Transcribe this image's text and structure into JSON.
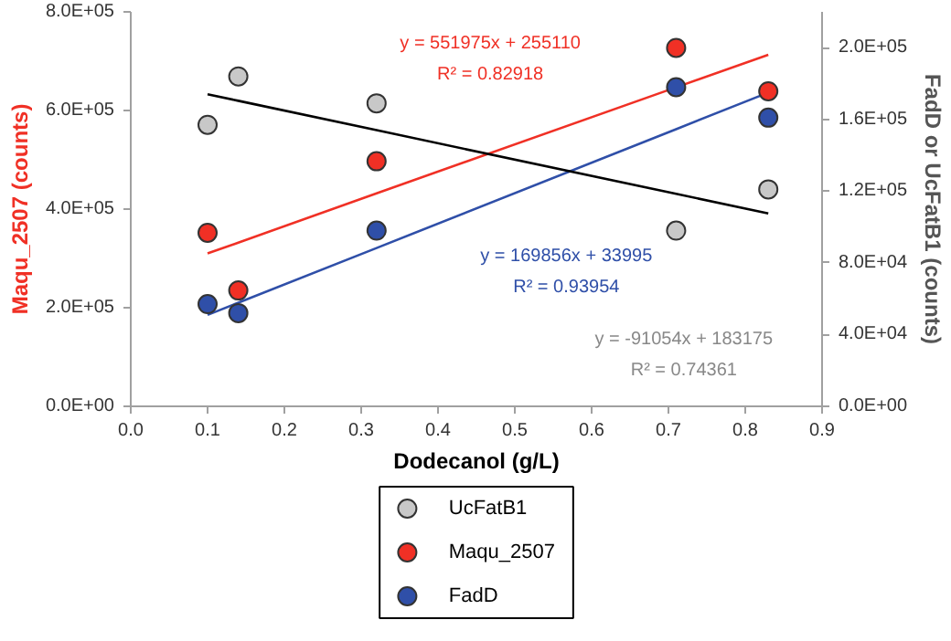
{
  "chart_data": {
    "type": "scatter",
    "xlabel": "Dodecanol (g/L)",
    "ylabel": "Maqu_2507 (counts)",
    "y2label": "FadD or UcFatB1 (counts)",
    "x": [
      0.1,
      0.14,
      0.32,
      0.71,
      0.83
    ],
    "series": [
      {
        "name": "UcFatB1",
        "color": "#c8c8c8",
        "axis": "y2",
        "values": [
          157000,
          184000,
          169000,
          98000,
          121000
        ]
      },
      {
        "name": "Maqu_2507",
        "color": "#f03025",
        "values": [
          352000,
          235000,
          497000,
          727000,
          639000
        ]
      },
      {
        "name": "FadD",
        "color": "#2f4fa8",
        "axis": "y2",
        "values": [
          57000,
          52000,
          98000,
          178000,
          161000
        ]
      },
      {
        "type": "line",
        "color": "#f03025",
        "values": [
          310000,
          332000,
          432000,
          647000,
          713000
        ],
        "marker": "none"
      },
      {
        "type": "line",
        "color": "#2f4fa8",
        "axis": "y2",
        "values": [
          51000,
          57800,
          88300,
          154600,
          175000
        ],
        "marker": "none"
      },
      {
        "type": "line",
        "color": "#000000",
        "axis": "y2",
        "values": [
          174000,
          170400,
          154000,
          118500,
          107600
        ],
        "marker": "none"
      }
    ],
    "annotations": [
      "y = 551975x + 255110",
      "R² = 0.82918",
      "y = 169856x + 33995",
      "R² = 0.93954",
      "y = -91054x + 183175",
      "R² = 0.74361"
    ],
    "xlim": [
      0,
      0.9
    ],
    "xticks": [
      {
        "value": 0,
        "label": "0.0"
      },
      {
        "value": 0.1,
        "label": "0.1"
      },
      {
        "value": 0.2,
        "label": "0.2"
      },
      {
        "value": 0.3,
        "label": "0.3"
      },
      {
        "value": 0.4,
        "label": "0.4"
      },
      {
        "value": 0.5,
        "label": "0.5"
      },
      {
        "value": 0.6,
        "label": "0.6"
      },
      {
        "value": 0.7,
        "label": "0.7"
      },
      {
        "value": 0.8,
        "label": "0.8"
      },
      {
        "value": 0.9,
        "label": "0.9"
      }
    ],
    "ylim": [
      0,
      800000
    ],
    "yticks": [
      {
        "value": 0,
        "label": "0.0E+00"
      },
      {
        "value": 200000,
        "label": "2.0E+05"
      },
      {
        "value": 400000,
        "label": "4.0E+05"
      },
      {
        "value": 600000,
        "label": "6.0E+05"
      },
      {
        "value": 800000,
        "label": "8.0E+05"
      }
    ],
    "y2lim": [
      0,
      220000
    ],
    "y2ticks": [
      {
        "value": 0,
        "label": "0.0E+00"
      },
      {
        "value": 40000,
        "label": "4.0E+04"
      },
      {
        "value": 80000,
        "label": "8.0E+04"
      },
      {
        "value": 120000,
        "label": "1.2E+05"
      },
      {
        "value": 160000,
        "label": "1.6E+05"
      },
      {
        "value": 200000,
        "label": "2.0E+05"
      }
    ],
    "marker": "circle",
    "grid": false,
    "legend": "bottom"
  }
}
